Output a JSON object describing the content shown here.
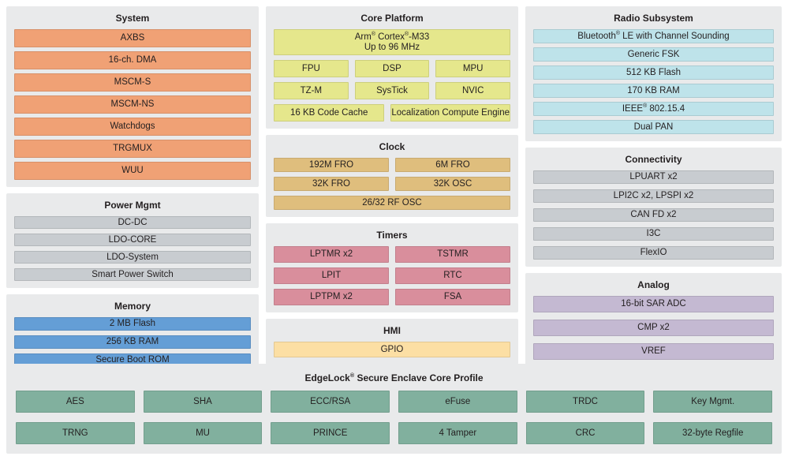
{
  "sections": {
    "system": {
      "title": "System",
      "color": "#F0A175",
      "rows": [
        [
          {
            "label": "AXBS"
          }
        ],
        [
          {
            "label": "16-ch. DMA"
          }
        ],
        [
          {
            "label": "MSCM-S"
          }
        ],
        [
          {
            "label": "MSCM-NS"
          }
        ],
        [
          {
            "label": "Watchdogs"
          }
        ],
        [
          {
            "label": "TRGMUX"
          }
        ],
        [
          {
            "label": "WUU"
          }
        ]
      ]
    },
    "power_mgmt": {
      "title": "Power Mgmt",
      "color": "#C8CCD0",
      "rows": [
        [
          {
            "label": "DC-DC"
          }
        ],
        [
          {
            "label": "LDO-CORE"
          }
        ],
        [
          {
            "label": "LDO-System"
          }
        ],
        [
          {
            "label": "Smart Power Switch"
          }
        ]
      ]
    },
    "memory": {
      "title": "Memory",
      "color": "#649ED6",
      "rows": [
        [
          {
            "label": "2 MB Flash"
          }
        ],
        [
          {
            "label": "256 KB RAM"
          }
        ],
        [
          {
            "label": "Secure Boot ROM"
          }
        ]
      ]
    },
    "core_platform": {
      "title": "Core Platform",
      "color": "#E5E78C",
      "rows": [
        [
          {
            "label": "Arm® Cortex®-M33",
            "sublabel": "Up to 96 MHz"
          }
        ],
        [
          {
            "label": "FPU"
          },
          {
            "label": "DSP"
          },
          {
            "label": "MPU"
          }
        ],
        [
          {
            "label": "TZ-M"
          },
          {
            "label": "SysTick"
          },
          {
            "label": "NVIC"
          }
        ],
        [
          {
            "label": "16 KB Code Cache"
          },
          {
            "label": "Localization Compute Engine"
          }
        ]
      ]
    },
    "clock": {
      "title": "Clock",
      "color": "#DFBE7D",
      "rows": [
        [
          {
            "label": "192M FRO"
          },
          {
            "label": "6M FRO"
          }
        ],
        [
          {
            "label": "32K FRO"
          },
          {
            "label": "32K OSC"
          }
        ],
        [
          {
            "label": "26/32 RF OSC"
          }
        ]
      ]
    },
    "timers": {
      "title": "Timers",
      "color": "#D98E9C",
      "rows": [
        [
          {
            "label": "LPTMR x2"
          },
          {
            "label": "TSTMR"
          }
        ],
        [
          {
            "label": "LPIT"
          },
          {
            "label": "RTC"
          }
        ],
        [
          {
            "label": "LPTPM x2"
          },
          {
            "label": "FSA"
          }
        ]
      ]
    },
    "hmi": {
      "title": "HMI",
      "color": "#FCDFA4",
      "rows": [
        [
          {
            "label": "GPIO"
          }
        ]
      ]
    },
    "radio": {
      "title": "Radio Subsystem",
      "color": "#BEE3EA",
      "rows": [
        [
          {
            "label": "Bluetooth® LE with Channel Sounding"
          }
        ],
        [
          {
            "label": "Generic FSK"
          }
        ],
        [
          {
            "label": "512 KB Flash"
          }
        ],
        [
          {
            "label": "170 KB RAM"
          }
        ],
        [
          {
            "label": "IEEE® 802.15.4"
          }
        ],
        [
          {
            "label": "Dual PAN"
          }
        ]
      ]
    },
    "connectivity": {
      "title": "Connectivity",
      "color": "#C8CCD0",
      "rows": [
        [
          {
            "label": "LPUART x2"
          }
        ],
        [
          {
            "label": "LPI2C x2, LPSPI x2"
          }
        ],
        [
          {
            "label": "CAN FD x2"
          }
        ],
        [
          {
            "label": "I3C"
          }
        ],
        [
          {
            "label": "FlexIO"
          }
        ]
      ]
    },
    "analog": {
      "title": "Analog",
      "color": "#C4B9D2",
      "rows": [
        [
          {
            "label": "16-bit SAR ADC"
          }
        ],
        [
          {
            "label": "CMP x2"
          }
        ],
        [
          {
            "label": "VREF"
          }
        ]
      ]
    },
    "edgelock": {
      "title": "EdgeLock® Secure Enclave Core Profile",
      "color": "#81B09E",
      "rows": [
        [
          {
            "label": "AES"
          },
          {
            "label": "SHA"
          },
          {
            "label": "ECC/RSA"
          },
          {
            "label": "eFuse"
          },
          {
            "label": "TRDC"
          },
          {
            "label": "Key Mgmt."
          }
        ],
        [
          {
            "label": "TRNG"
          },
          {
            "label": "MU"
          },
          {
            "label": "PRINCE"
          },
          {
            "label": "4 Tamper"
          },
          {
            "label": "CRC"
          },
          {
            "label": "32-byte Regfile"
          }
        ]
      ]
    }
  },
  "colors": {
    "panel_background": "#E9EAEB",
    "text": "#231F20",
    "page_background": "#FFFFFF"
  }
}
